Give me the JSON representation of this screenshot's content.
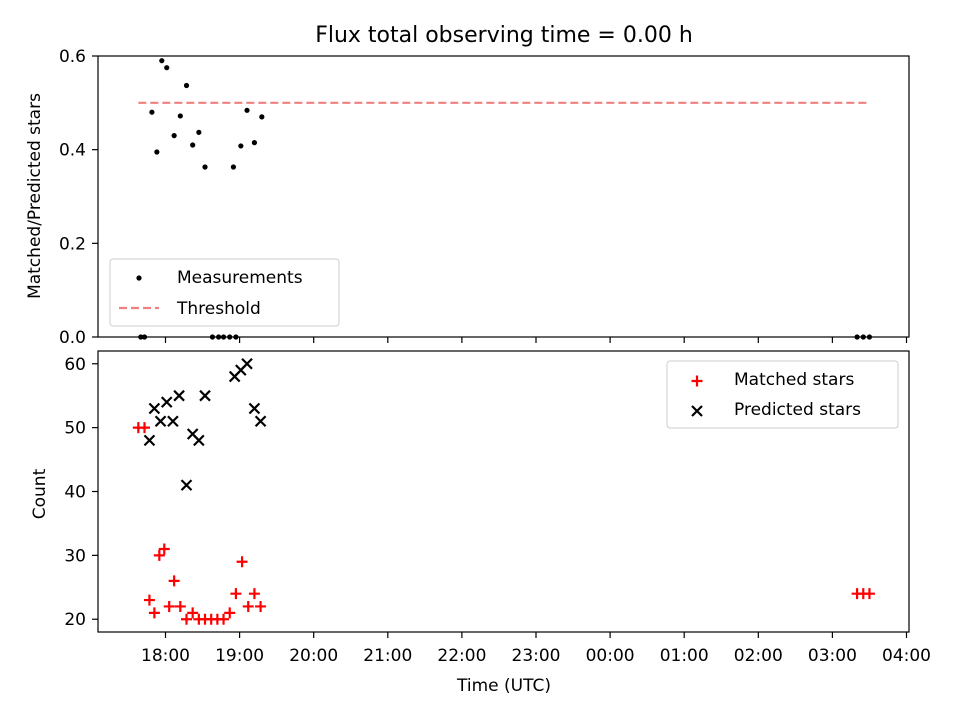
{
  "title": "Flux total observing time = 0.00 h",
  "colors": {
    "measurements": "#000000",
    "threshold": "#f08080",
    "matched": "#ff0000",
    "predicted": "#000000"
  },
  "chart_data": [
    {
      "type": "scatter",
      "ylabel": "Matched/Predicted stars",
      "ylim": [
        0,
        0.6
      ],
      "yticks": [
        "0.0",
        "0.2",
        "0.4",
        "0.6"
      ],
      "ytick_values": [
        0,
        0.2,
        0.4,
        0.6
      ],
      "legend_position": "lower-left",
      "series": [
        {
          "name": "Measurements",
          "marker": "dot",
          "x": [
            "17:40",
            "17:43",
            "17:49",
            "17:53",
            "17:57",
            "18:01",
            "18:07",
            "18:12",
            "18:17",
            "18:22",
            "18:27",
            "18:32",
            "18:38",
            "18:43",
            "18:47",
            "18:52",
            "18:55",
            "18:57",
            "19:01",
            "19:06",
            "19:12",
            "19:18",
            "03:20",
            "03:25",
            "03:30"
          ],
          "y": [
            0.0,
            0.0,
            0.48,
            0.395,
            0.59,
            0.575,
            0.43,
            0.472,
            0.537,
            0.41,
            0.437,
            0.363,
            0.0,
            0.0,
            0.0,
            0.0,
            0.363,
            0.0,
            0.408,
            0.484,
            0.415,
            0.47,
            0.0,
            0.0,
            0.0
          ]
        },
        {
          "name": "Threshold",
          "style": "dashed",
          "x": [
            "17:38",
            "03:30"
          ],
          "y": [
            0.5,
            0.5
          ]
        }
      ]
    },
    {
      "type": "scatter",
      "ylabel": "Count",
      "xlabel": "Time (UTC)",
      "ylim": [
        18,
        62
      ],
      "yticks": [
        "20",
        "30",
        "40",
        "50",
        "60"
      ],
      "ytick_values": [
        20,
        30,
        40,
        50,
        60
      ],
      "xticks": [
        "18:00",
        "19:00",
        "20:00",
        "21:00",
        "22:00",
        "23:00",
        "00:00",
        "01:00",
        "02:00",
        "03:00",
        "04:00"
      ],
      "legend_position": "upper-right",
      "series": [
        {
          "name": "Matched stars",
          "marker": "plus",
          "x": [
            "17:38",
            "17:43",
            "17:47",
            "17:51",
            "17:55",
            "17:59",
            "18:03",
            "18:07",
            "18:12",
            "18:17",
            "18:22",
            "18:27",
            "18:32",
            "18:37",
            "18:42",
            "18:47",
            "18:52",
            "18:57",
            "19:02",
            "19:07",
            "19:12",
            "19:17",
            "03:20",
            "03:25",
            "03:30"
          ],
          "y": [
            50,
            50,
            23,
            21,
            30,
            31,
            22,
            26,
            22,
            20,
            21,
            20,
            20,
            20,
            20,
            20,
            21,
            24,
            29,
            22,
            24,
            22,
            24,
            24,
            24
          ]
        },
        {
          "name": "Predicted stars",
          "marker": "x",
          "x": [
            "17:47",
            "17:51",
            "17:56",
            "18:01",
            "18:06",
            "18:11",
            "18:17",
            "18:22",
            "18:27",
            "18:32",
            "18:56",
            "19:01",
            "19:06",
            "19:12",
            "19:17"
          ],
          "y": [
            48,
            53,
            51,
            54,
            51,
            55,
            41,
            49,
            48,
            55,
            58,
            59,
            60,
            53,
            51
          ]
        }
      ]
    }
  ]
}
